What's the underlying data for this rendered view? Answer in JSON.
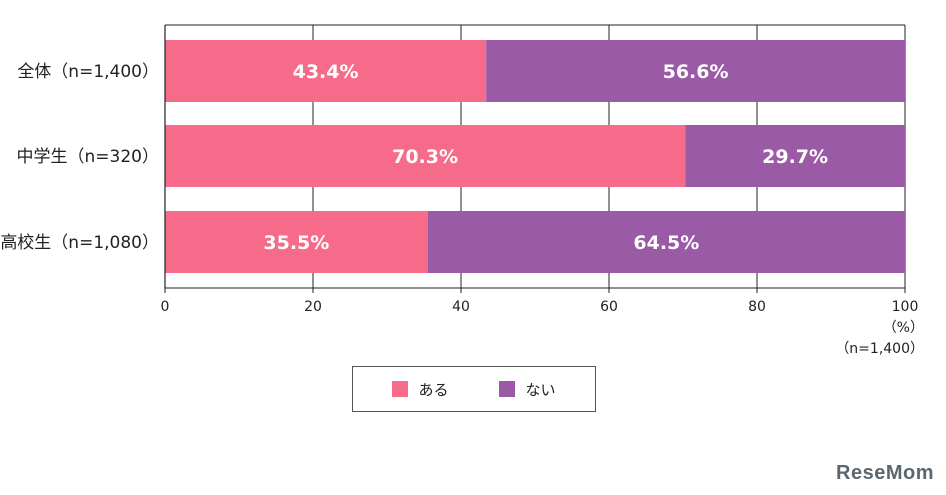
{
  "chart_data": {
    "type": "bar",
    "orientation": "horizontal",
    "stacked": true,
    "categories": [
      "全体（n=1,400）",
      "中学生（n=320）",
      "高校生（n=1,080）"
    ],
    "series": [
      {
        "name": "ある",
        "color": "#f66b8a",
        "values": [
          43.4,
          70.3,
          35.5
        ],
        "labels": [
          "43.4%",
          "70.3%",
          "35.5%"
        ]
      },
      {
        "name": "ない",
        "color": "#9b5aa6",
        "values": [
          56.6,
          29.7,
          64.5
        ],
        "labels": [
          "56.6%",
          "29.7%",
          "64.5%"
        ]
      }
    ],
    "xlim": [
      0,
      100
    ],
    "xticks": [
      0,
      20,
      40,
      60,
      80,
      100
    ],
    "grid": true,
    "legend_position": "bottom"
  },
  "units": {
    "percent": "（%）",
    "sample": "（n=1,400）"
  },
  "legend": [
    {
      "label": "ある",
      "color": "#f66b8a"
    },
    {
      "label": "ない",
      "color": "#9b5aa6"
    }
  ],
  "brand": "ReseMom"
}
